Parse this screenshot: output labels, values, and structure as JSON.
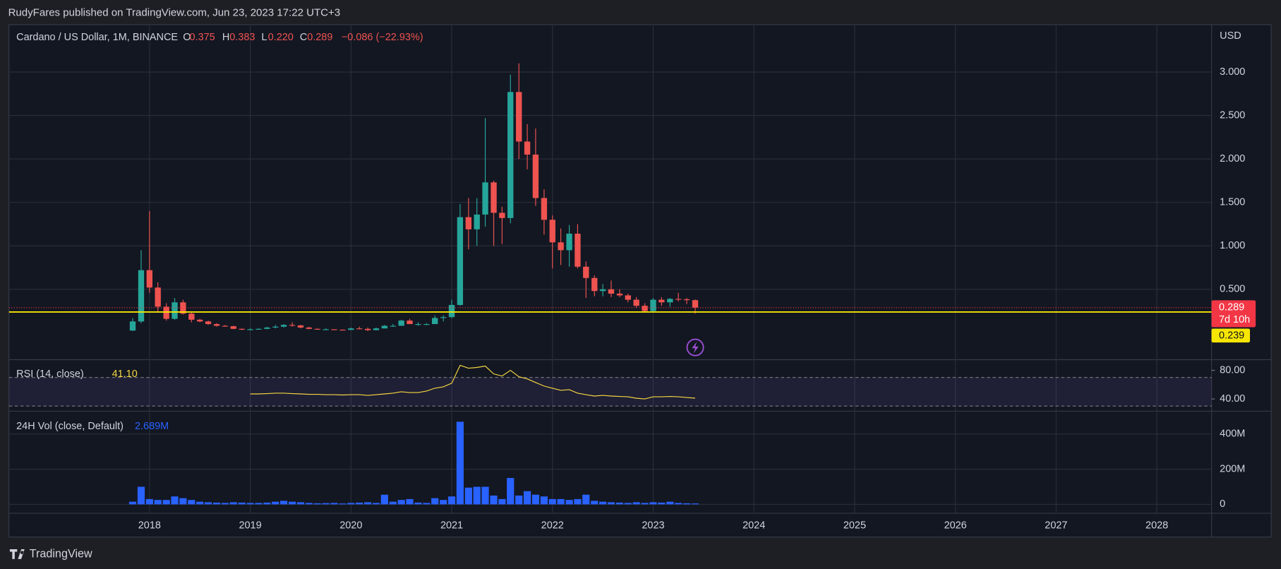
{
  "header": {
    "published": "RudyFares published on TradingView.com, Jun 23, 2023 17:22 UTC+3",
    "logo": "TradingView"
  },
  "chart_data": [
    {
      "type": "candlestick",
      "title": "Cardano / US Dollar, 1M, BINANCE",
      "legend": [
        {
          "key": "O",
          "value": "0.375"
        },
        {
          "key": "H",
          "value": "0.383"
        },
        {
          "key": "L",
          "value": "0.220"
        },
        {
          "key": "C",
          "value": "0.289"
        }
      ],
      "change": "−0.086 (−22.93%)",
      "axis_unit": "USD",
      "x": [
        2017.833,
        2017.917,
        2018,
        2018.083,
        2018.167,
        2018.25,
        2018.333,
        2018.417,
        2018.5,
        2018.583,
        2018.667,
        2018.75,
        2018.833,
        2018.917,
        2019,
        2019.083,
        2019.167,
        2019.25,
        2019.333,
        2019.417,
        2019.5,
        2019.583,
        2019.667,
        2019.75,
        2019.833,
        2019.917,
        2020,
        2020.083,
        2020.167,
        2020.25,
        2020.333,
        2020.417,
        2020.5,
        2020.583,
        2020.667,
        2020.75,
        2020.833,
        2020.917,
        2021,
        2021.083,
        2021.167,
        2021.25,
        2021.333,
        2021.417,
        2021.5,
        2021.583,
        2021.667,
        2021.75,
        2021.833,
        2021.917,
        2022,
        2022.083,
        2022.167,
        2022.25,
        2022.333,
        2022.417,
        2022.5,
        2022.583,
        2022.667,
        2022.75,
        2022.833,
        2022.917,
        2023,
        2023.083,
        2023.167,
        2023.25,
        2023.333,
        2023.417
      ],
      "open": [
        0.025,
        0.13,
        0.72,
        0.52,
        0.3,
        0.16,
        0.35,
        0.22,
        0.15,
        0.13,
        0.1,
        0.08,
        0.075,
        0.045,
        0.04,
        0.04,
        0.045,
        0.06,
        0.07,
        0.09,
        0.085,
        0.06,
        0.045,
        0.04,
        0.04,
        0.035,
        0.033,
        0.05,
        0.045,
        0.03,
        0.05,
        0.08,
        0.08,
        0.14,
        0.1,
        0.1,
        0.1,
        0.17,
        0.18,
        0.32,
        1.33,
        1.19,
        1.36,
        1.73,
        1.38,
        1.32,
        2.77,
        2.2,
        2.05,
        1.55,
        1.3,
        1.04,
        0.95,
        1.14,
        0.76,
        0.63,
        0.48,
        0.5,
        0.45,
        0.43,
        0.38,
        0.31,
        0.25,
        0.38,
        0.35,
        0.39,
        0.385,
        0.375
      ],
      "high": [
        0.17,
        0.95,
        1.4,
        0.58,
        0.34,
        0.4,
        0.38,
        0.23,
        0.16,
        0.14,
        0.11,
        0.09,
        0.08,
        0.05,
        0.05,
        0.05,
        0.07,
        0.09,
        0.1,
        0.12,
        0.09,
        0.07,
        0.05,
        0.05,
        0.04,
        0.04,
        0.06,
        0.07,
        0.06,
        0.06,
        0.09,
        0.1,
        0.15,
        0.16,
        0.12,
        0.11,
        0.2,
        0.2,
        0.38,
        1.48,
        1.55,
        1.55,
        2.47,
        1.75,
        1.45,
        2.97,
        3.1,
        2.4,
        2.35,
        1.65,
        1.35,
        1.2,
        1.24,
        1.25,
        0.82,
        0.66,
        0.56,
        0.6,
        0.5,
        0.45,
        0.41,
        0.34,
        0.4,
        0.41,
        0.4,
        0.46,
        0.4,
        0.383
      ],
      "low": [
        0.02,
        0.11,
        0.46,
        0.23,
        0.14,
        0.15,
        0.21,
        0.12,
        0.12,
        0.09,
        0.07,
        0.07,
        0.04,
        0.03,
        0.03,
        0.04,
        0.04,
        0.05,
        0.06,
        0.07,
        0.05,
        0.04,
        0.04,
        0.03,
        0.03,
        0.03,
        0.03,
        0.04,
        0.02,
        0.03,
        0.05,
        0.07,
        0.08,
        0.1,
        0.08,
        0.09,
        0.1,
        0.13,
        0.17,
        0.31,
        0.96,
        1.0,
        1.22,
        1.0,
        1.02,
        1.26,
        2.0,
        1.88,
        1.46,
        1.13,
        0.74,
        0.78,
        0.76,
        0.74,
        0.4,
        0.42,
        0.42,
        0.41,
        0.41,
        0.35,
        0.29,
        0.24,
        0.24,
        0.31,
        0.3,
        0.36,
        0.33,
        0.22
      ],
      "close": [
        0.13,
        0.72,
        0.52,
        0.3,
        0.16,
        0.35,
        0.22,
        0.15,
        0.13,
        0.1,
        0.08,
        0.075,
        0.045,
        0.04,
        0.04,
        0.045,
        0.06,
        0.07,
        0.09,
        0.085,
        0.06,
        0.045,
        0.04,
        0.04,
        0.035,
        0.033,
        0.05,
        0.045,
        0.03,
        0.05,
        0.08,
        0.08,
        0.14,
        0.1,
        0.1,
        0.1,
        0.17,
        0.18,
        0.32,
        1.33,
        1.19,
        1.36,
        1.73,
        1.38,
        1.32,
        2.77,
        2.2,
        2.05,
        1.55,
        1.3,
        1.04,
        0.95,
        1.14,
        0.76,
        0.63,
        0.48,
        0.5,
        0.45,
        0.43,
        0.38,
        0.31,
        0.25,
        0.38,
        0.35,
        0.39,
        0.385,
        0.375,
        0.289
      ],
      "up_color": "#26a69a",
      "down_color": "#ef5350",
      "xlim": [
        2016.605,
        2028.543
      ],
      "ylim": [
        -0.291,
        3.545
      ],
      "yticks": [
        {
          "value": 0.5,
          "label": "0.500"
        },
        {
          "value": 1,
          "label": "1.000"
        },
        {
          "value": 1.5,
          "label": "1.500"
        },
        {
          "value": 2,
          "label": "2.000"
        },
        {
          "value": 2.5,
          "label": "2.500"
        },
        {
          "value": 3,
          "label": "3.000"
        }
      ],
      "grid": true,
      "price_tag": {
        "value": 0.289,
        "label": "0.289",
        "countdown": "7d 10h",
        "color": "#f23645"
      },
      "hline": {
        "value": 0.239,
        "label": "0.239",
        "color": "#f7e600"
      }
    },
    {
      "type": "line",
      "title": "RSI (14, close)",
      "value_label": "41.10",
      "color": "#f5d742",
      "x": [
        2019,
        2019.083,
        2019.167,
        2019.25,
        2019.333,
        2019.417,
        2019.5,
        2019.583,
        2019.667,
        2019.75,
        2019.833,
        2019.917,
        2020,
        2020.083,
        2020.167,
        2020.25,
        2020.333,
        2020.417,
        2020.5,
        2020.583,
        2020.667,
        2020.75,
        2020.833,
        2020.917,
        2021,
        2021.083,
        2021.167,
        2021.25,
        2021.333,
        2021.417,
        2021.5,
        2021.583,
        2021.667,
        2021.75,
        2021.833,
        2021.917,
        2022,
        2022.083,
        2022.167,
        2022.25,
        2022.333,
        2022.417,
        2022.5,
        2022.583,
        2022.667,
        2022.75,
        2022.833,
        2022.917,
        2023,
        2023.083,
        2023.167,
        2023.25,
        2023.333,
        2023.417
      ],
      "values": [
        47,
        47,
        47.5,
        48,
        48,
        47.5,
        47,
        46.5,
        46.5,
        46,
        46,
        45.5,
        46,
        46,
        45,
        46,
        47,
        48,
        50,
        49,
        49,
        51,
        55,
        57,
        62,
        87,
        83,
        84,
        86,
        75,
        72,
        80,
        71,
        68,
        63,
        58,
        55,
        52,
        53,
        48,
        46,
        44,
        45,
        44,
        43.5,
        43,
        41,
        40,
        43,
        43,
        43.5,
        43,
        42,
        41.1
      ],
      "xlim": [
        2016.605,
        2028.543
      ],
      "ylim": [
        22.9,
        94.9
      ],
      "yticks": [
        {
          "value": 80,
          "label": "80.00"
        },
        {
          "value": 40,
          "label": "40.00"
        }
      ],
      "levels": [
        70,
        30
      ],
      "band_color": "#7e57c2"
    },
    {
      "type": "bar",
      "title": "24H Vol (close, Default)",
      "value_label": "2.689M",
      "color": "#2962ff",
      "x": [
        2017.833,
        2017.917,
        2018,
        2018.083,
        2018.167,
        2018.25,
        2018.333,
        2018.417,
        2018.5,
        2018.583,
        2018.667,
        2018.75,
        2018.833,
        2018.917,
        2019,
        2019.083,
        2019.167,
        2019.25,
        2019.333,
        2019.417,
        2019.5,
        2019.583,
        2019.667,
        2019.75,
        2019.833,
        2019.917,
        2020,
        2020.083,
        2020.167,
        2020.25,
        2020.333,
        2020.417,
        2020.5,
        2020.583,
        2020.667,
        2020.75,
        2020.833,
        2020.917,
        2021,
        2021.083,
        2021.167,
        2021.25,
        2021.333,
        2021.417,
        2021.5,
        2021.583,
        2021.667,
        2021.75,
        2021.833,
        2021.917,
        2022,
        2022.083,
        2022.167,
        2022.25,
        2022.333,
        2022.417,
        2022.5,
        2022.583,
        2022.667,
        2022.75,
        2022.833,
        2022.917,
        2023,
        2023.083,
        2023.167,
        2023.25,
        2023.333,
        2023.417
      ],
      "values": [
        15,
        100,
        30,
        25,
        25,
        45,
        35,
        25,
        15,
        12,
        10,
        8,
        12,
        10,
        8,
        8,
        10,
        15,
        20,
        15,
        12,
        8,
        6,
        7,
        8,
        5,
        8,
        10,
        12,
        8,
        55,
        15,
        25,
        30,
        10,
        8,
        35,
        25,
        45,
        470,
        95,
        100,
        100,
        50,
        30,
        150,
        50,
        75,
        55,
        45,
        30,
        30,
        25,
        30,
        55,
        20,
        15,
        12,
        10,
        8,
        12,
        8,
        12,
        10,
        15,
        8,
        6,
        5
      ],
      "xlim": [
        2016.605,
        2028.543
      ],
      "ylim": [
        -51,
        521
      ],
      "yticks": [
        0,
        {
          "value": 200,
          "label": "200M"
        },
        {
          "value": 400,
          "label": "400M"
        }
      ],
      "xticks": [
        2018,
        2019,
        2020,
        2021,
        2022,
        2023,
        2024,
        2025,
        2026,
        2027,
        2028
      ]
    }
  ]
}
